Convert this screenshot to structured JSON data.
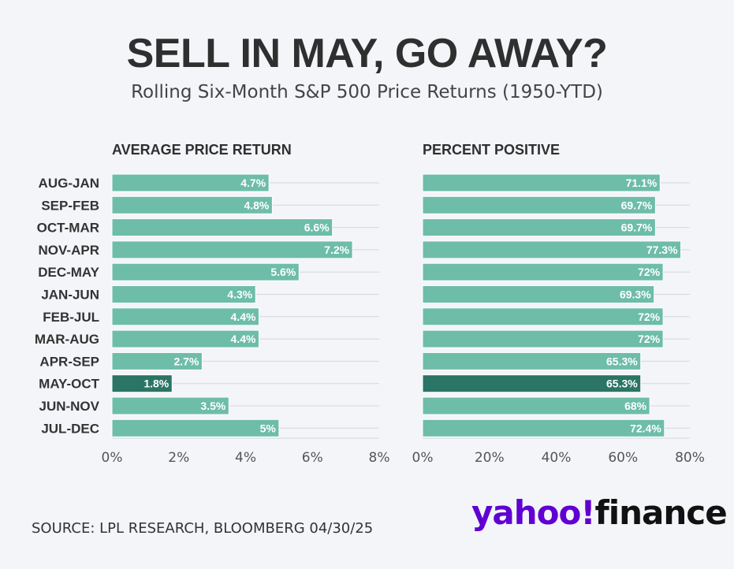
{
  "title": "SELL IN MAY, GO AWAY?",
  "subtitle": "Rolling Six-Month S&P 500 Price Returns (1950-YTD)",
  "source": "SOURCE: LPL RESEARCH, BLOOMBERG 04/30/25",
  "logo": {
    "part1": "yahoo!",
    "part2": "finance"
  },
  "colors": {
    "bar": "#6dbda9",
    "highlight": "#2a7565",
    "grid": "#d4d7dc",
    "axis_text": "#555555",
    "label_text": "#333333",
    "value_text": "#ffffff",
    "logo_yahoo": "#6001d2"
  },
  "chart_data": [
    {
      "type": "bar",
      "orientation": "horizontal",
      "title": "AVERAGE PRICE RETURN",
      "categories": [
        "AUG-JAN",
        "SEP-FEB",
        "OCT-MAR",
        "NOV-APR",
        "DEC-MAY",
        "JAN-JUN",
        "FEB-JUL",
        "MAR-AUG",
        "APR-SEP",
        "MAY-OCT",
        "JUN-NOV",
        "JUL-DEC"
      ],
      "values": [
        4.7,
        4.8,
        6.6,
        7.2,
        5.6,
        4.3,
        4.4,
        4.4,
        2.7,
        1.8,
        3.5,
        5.0
      ],
      "value_labels": [
        "4.7%",
        "4.8%",
        "6.6%",
        "7.2%",
        "5.6%",
        "4.3%",
        "4.4%",
        "4.4%",
        "2.7%",
        "1.8%",
        "3.5%",
        "5%"
      ],
      "highlight": "MAY-OCT",
      "xlim": [
        0,
        8
      ],
      "xticks": [
        0,
        2,
        4,
        6,
        8
      ],
      "xtick_labels": [
        "0%",
        "2%",
        "4%",
        "6%",
        "8%"
      ]
    },
    {
      "type": "bar",
      "orientation": "horizontal",
      "title": "PERCENT POSITIVE",
      "categories": [
        "AUG-JAN",
        "SEP-FEB",
        "OCT-MAR",
        "NOV-APR",
        "DEC-MAY",
        "JAN-JUN",
        "FEB-JUL",
        "MAR-AUG",
        "APR-SEP",
        "MAY-OCT",
        "JUN-NOV",
        "JUL-DEC"
      ],
      "values": [
        71.1,
        69.7,
        69.7,
        77.3,
        72,
        69.3,
        72,
        72,
        65.3,
        65.3,
        68,
        72.4
      ],
      "value_labels": [
        "71.1%",
        "69.7%",
        "69.7%",
        "77.3%",
        "72%",
        "69.3%",
        "72%",
        "72%",
        "65.3%",
        "65.3%",
        "68%",
        "72.4%"
      ],
      "highlight": "MAY-OCT",
      "xlim": [
        0,
        80
      ],
      "xticks": [
        0,
        20,
        40,
        60,
        80
      ],
      "xtick_labels": [
        "0%",
        "20%",
        "40%",
        "60%",
        "80%"
      ]
    }
  ]
}
